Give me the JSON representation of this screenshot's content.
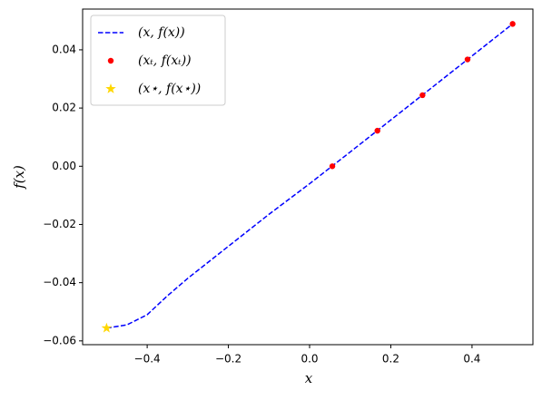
{
  "chart_data": {
    "type": "line",
    "xlabel": "x",
    "ylabel": "f(x)",
    "xlim": [
      -0.559,
      0.55
    ],
    "ylim": [
      -0.0613,
      0.054
    ],
    "xticks": [
      {
        "value": -0.4,
        "label": "−0.4"
      },
      {
        "value": -0.2,
        "label": "−0.2"
      },
      {
        "value": 0,
        "label": "0.0"
      },
      0.2,
      0.4
    ],
    "yticks": [
      {
        "value": -0.06,
        "label": "−0.06"
      },
      {
        "value": -0.04,
        "label": "−0.04"
      },
      {
        "value": -0.02,
        "label": "−0.02"
      },
      {
        "value": 0,
        "label": "0.00"
      },
      0.02,
      0.04
    ],
    "legend": "upper left",
    "series": [
      {
        "name": "(x, f(x))",
        "color": "#0000ff",
        "style": "dashed",
        "x": [
          -0.5,
          -0.45,
          -0.4,
          -0.35,
          -0.3,
          -0.2,
          -0.1,
          0,
          0.1,
          0.2,
          0.3,
          0.4,
          0.5
        ],
        "values": [
          -0.0556,
          -0.0545,
          -0.051,
          -0.0445,
          -0.0385,
          -0.0275,
          -0.0165,
          -0.006,
          0.0049,
          0.0159,
          0.0269,
          0.0379,
          0.0489
        ]
      },
      {
        "name": "(xₜ, f(xₜ))",
        "color": "#ff0000",
        "marker": "circle",
        "x": [
          0.056,
          0.167,
          0.278,
          0.389,
          0.5
        ],
        "values": [
          0.0,
          0.0122,
          0.0244,
          0.0367,
          0.0489
        ]
      },
      {
        "name": "(x⋆, f(x⋆))",
        "color": "#ffd700",
        "marker": "star",
        "x": [
          -0.5
        ],
        "values": [
          -0.0556
        ]
      }
    ]
  }
}
